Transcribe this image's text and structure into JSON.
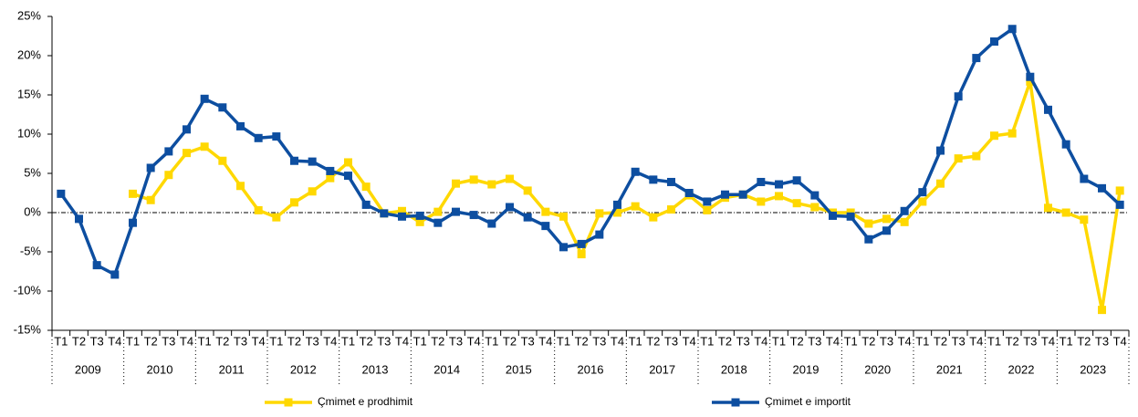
{
  "chart_data": {
    "type": "line",
    "categories": [
      "T1",
      "T2",
      "T3",
      "T4",
      "T1",
      "T2",
      "T3",
      "T4",
      "T1",
      "T2",
      "T3",
      "T4",
      "T1",
      "T2",
      "T3",
      "T4",
      "T1",
      "T2",
      "T3",
      "T4",
      "T1",
      "T2",
      "T3",
      "T4",
      "T1",
      "T2",
      "T3",
      "T4",
      "T1",
      "T2",
      "T3",
      "T4",
      "T1",
      "T2",
      "T3",
      "T4",
      "T1",
      "T2",
      "T3",
      "T4",
      "T1",
      "T2",
      "T3",
      "T4",
      "T1",
      "T2",
      "T3",
      "T4",
      "T1",
      "T2",
      "T3",
      "T4",
      "T1",
      "T2",
      "T3",
      "T4",
      "T1",
      "T2",
      "T3",
      "T4"
    ],
    "year_labels": [
      "2009",
      "2010",
      "2011",
      "2012",
      "2013",
      "2014",
      "2015",
      "2016",
      "2017",
      "2018",
      "2019",
      "2020",
      "2021",
      "2022",
      "2023"
    ],
    "series": [
      {
        "name": "Çmimet e prodhimit",
        "color": "#FFD800",
        "values": [
          null,
          null,
          null,
          null,
          2.4,
          1.6,
          4.8,
          7.6,
          8.4,
          6.6,
          3.4,
          0.3,
          -0.6,
          1.3,
          2.7,
          4.4,
          6.4,
          3.3,
          -0.1,
          0.2,
          -1.2,
          0.1,
          3.7,
          4.2,
          3.6,
          4.3,
          2.8,
          0.1,
          -0.5,
          -5.3,
          -0.1,
          0,
          0.8,
          -0.6,
          0.4,
          2.2,
          0.3,
          1.9,
          2.3,
          1.4,
          2.1,
          1.2,
          0.7,
          0,
          0,
          -1.4,
          -0.8,
          -1.2,
          1.4,
          3.7,
          6.9,
          7.2,
          9.8,
          10.1,
          16.7,
          0.6,
          0,
          -0.9,
          -12.4,
          2.8
        ]
      },
      {
        "name": "Çmimet e importit",
        "color": "#0D4EA0",
        "values": [
          2.4,
          -0.8,
          -6.7,
          -7.9,
          -1.3,
          5.7,
          7.8,
          10.6,
          14.5,
          13.4,
          11.0,
          9.5,
          9.7,
          6.6,
          6.5,
          5.3,
          4.7,
          1.0,
          -0.1,
          -0.5,
          -0.4,
          -1.3,
          0.1,
          -0.3,
          -1.4,
          0.7,
          -0.6,
          -1.7,
          -4.4,
          -4.0,
          -2.8,
          1.0,
          5.2,
          4.2,
          3.9,
          2.5,
          1.4,
          2.3,
          2.3,
          3.9,
          3.6,
          4.1,
          2.2,
          -0.4,
          -0.5,
          -3.4,
          -2.3,
          0.2,
          2.6,
          7.9,
          14.8,
          19.7,
          21.8,
          23.4,
          17.3,
          13.1,
          8.7,
          4.3,
          3.1,
          1.0
        ]
      }
    ],
    "ylim": [
      -15,
      25
    ],
    "yticks": [
      {
        "value": -15,
        "label": "-15%"
      },
      {
        "value": -10,
        "label": "-10%"
      },
      {
        "value": -5,
        "label": "-5%"
      },
      {
        "value": 0,
        "label": "0%"
      },
      {
        "value": 5,
        "label": "5%"
      },
      {
        "value": 10,
        "label": "10%"
      },
      {
        "value": 15,
        "label": "15%"
      },
      {
        "value": 20,
        "label": "20%"
      },
      {
        "value": 25,
        "label": "25%"
      }
    ],
    "zero_line": true,
    "legend": "bottom"
  }
}
